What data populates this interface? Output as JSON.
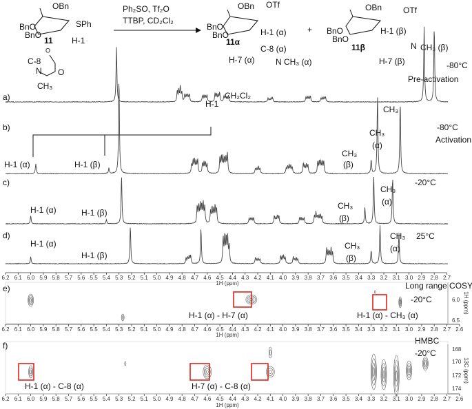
{
  "scheme": {
    "reagents_top": "Ph₂SO, Tf₂O",
    "reagents_bottom": "TTBP, CD₂Cl₂",
    "plus": "+",
    "donor": {
      "obn": "OBn",
      "bno_1": "BnO",
      "bno_2": "BnO",
      "compound": "11",
      "sph": "SPh",
      "h1": "H-1",
      "c8": "C-8",
      "n": "N",
      "o": "O",
      "ch3": "CH₃"
    },
    "alpha": {
      "obn": "OBn",
      "otf": "OTf",
      "bno_1": "BnO",
      "bno_2": "BnO",
      "compound": "11α",
      "h1": "H-1 (α)",
      "c8": "C-8 (α)",
      "h7": "H-7 (α)",
      "ch3": "CH₃ (α)",
      "n": "N"
    },
    "beta": {
      "obn": "OBn",
      "otf": "OTf",
      "bno_1": "BnO",
      "bno_2": "BnO",
      "compound": "11β",
      "h1": "H-1 (β)",
      "h7": "H-7 (β)",
      "ch3": "CH₃ (β)",
      "n": "N"
    }
  },
  "panels": {
    "a": {
      "label": "a)",
      "solvent": "CH₂Cl₂",
      "h1": "H-1",
      "ch3": "CH₃",
      "temperature": "-80°C",
      "stage": "Pre-activation"
    },
    "b": {
      "label": "b)",
      "temperature": "-80°C",
      "stage": "Activation",
      "h1_alpha": "H-1 (α)",
      "h1_beta": "H-1 (β)",
      "ch3_beta": [
        "CH₃",
        "(β)"
      ],
      "ch3_alpha": [
        "CH₃",
        "(α)"
      ]
    },
    "c": {
      "label": "c)",
      "temperature": "-20°C",
      "h1_alpha": "H-1 (α)",
      "h1_beta": "H-1 (β)",
      "ch3_beta": [
        "CH₃",
        "(β)"
      ],
      "ch3_alpha": [
        "CH₃",
        "(α)"
      ]
    },
    "d": {
      "label": "d)",
      "temperature": "25°C",
      "h1_alpha": "H-1 (α)",
      "h1_beta": "H-1 (β)",
      "ch3_beta": [
        "CH₃",
        "(β)"
      ],
      "ch3_alpha": [
        "CH₃",
        "(α)"
      ]
    },
    "e": {
      "label": "e)",
      "experiment": "Long range COSY",
      "temperature": "-20°C",
      "cross_1": "H-1 (α) - H-7 (α)",
      "cross_2": "H-1 (α) - CH₃ (α)",
      "y_label": "1H (ppm)",
      "y_ticks": [
        "6.0",
        "6.5"
      ]
    },
    "f": {
      "label": "f)",
      "experiment": "HMBC",
      "temperature": "-20°C",
      "cross_1": "H-1 (α) - C-8 (α)",
      "cross_2": "H-7 (α) - C-8 (α)",
      "y_label": "13C (ppm)",
      "y_ticks": [
        "168",
        "170",
        "172",
        "174"
      ]
    }
  },
  "x_axis": {
    "label": "1H (ppm)",
    "ticks": [
      "6.2",
      "6.1",
      "6.0",
      "5.9",
      "5.8",
      "5.7",
      "5.6",
      "5.5",
      "5.4",
      "5.3",
      "5.2",
      "5.1",
      "5.0",
      "4.9",
      "4.8",
      "4.7",
      "4.6",
      "4.5",
      "4.4",
      "4.3",
      "4.2",
      "4.1",
      "4.0",
      "3.9",
      "3.8",
      "3.7",
      "3.6",
      "3.5",
      "3.4",
      "3.3",
      "3.2",
      "3.1",
      "3.0",
      "2.9",
      "2.8",
      "2.7",
      "2.6"
    ]
  }
}
